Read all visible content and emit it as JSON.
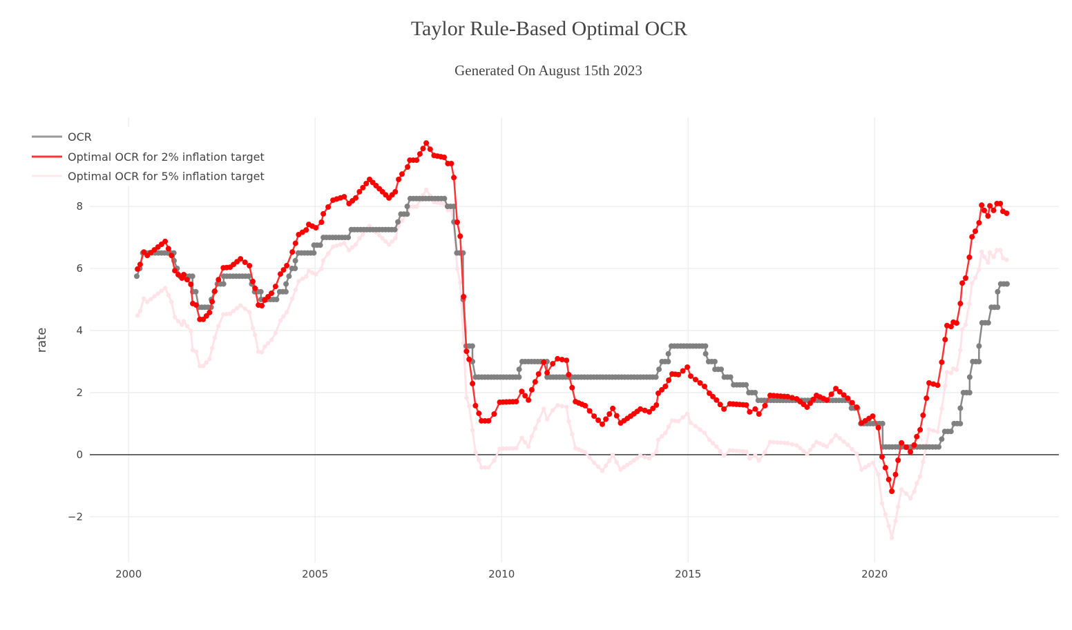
{
  "chart_data": {
    "type": "line",
    "title": "Taylor Rule-Based Optimal OCR",
    "subtitle": "Generated On August 15th 2023",
    "xlabel": "",
    "ylabel": "rate",
    "xlim": [
      1998.96,
      2024.94
    ],
    "ylim": [
      -3.47,
      10.87
    ],
    "x_ticks": [
      2000,
      2005,
      2010,
      2015,
      2020
    ],
    "x_tick_labels": [
      "2000",
      "2005",
      "2010",
      "2015",
      "2020"
    ],
    "y_ticks": [
      -2,
      0,
      2,
      4,
      6,
      8
    ],
    "y_tick_labels": [
      "−2",
      "0",
      "2",
      "4",
      "6",
      "8"
    ],
    "grid": true,
    "legend_position": "top-left",
    "series": [
      {
        "name": "OCR",
        "color": "#808080",
        "mode": "lines+markers",
        "step_changes": [
          [
            2000.22,
            5.75
          ],
          [
            2000.3,
            6.0
          ],
          [
            2000.38,
            6.5
          ],
          [
            2001.22,
            6.25
          ],
          [
            2001.3,
            6.0
          ],
          [
            2001.38,
            5.75
          ],
          [
            2001.72,
            5.25
          ],
          [
            2001.88,
            4.75
          ],
          [
            2002.22,
            5.0
          ],
          [
            2002.3,
            5.25
          ],
          [
            2002.38,
            5.5
          ],
          [
            2002.55,
            5.75
          ],
          [
            2003.3,
            5.5
          ],
          [
            2003.38,
            5.25
          ],
          [
            2003.55,
            5.0
          ],
          [
            2004.05,
            5.25
          ],
          [
            2004.22,
            5.5
          ],
          [
            2004.3,
            5.75
          ],
          [
            2004.38,
            6.0
          ],
          [
            2004.47,
            6.25
          ],
          [
            2004.55,
            6.5
          ],
          [
            2004.97,
            6.75
          ],
          [
            2005.22,
            7.0
          ],
          [
            2005.97,
            7.25
          ],
          [
            2007.22,
            7.5
          ],
          [
            2007.3,
            7.75
          ],
          [
            2007.47,
            8.0
          ],
          [
            2007.55,
            8.25
          ],
          [
            2008.55,
            8.0
          ],
          [
            2008.72,
            7.5
          ],
          [
            2008.8,
            6.5
          ],
          [
            2008.97,
            5.0
          ],
          [
            2009.05,
            3.5
          ],
          [
            2009.22,
            3.0
          ],
          [
            2009.3,
            2.5
          ],
          [
            2010.47,
            2.75
          ],
          [
            2010.55,
            3.0
          ],
          [
            2011.22,
            2.5
          ],
          [
            2014.22,
            2.75
          ],
          [
            2014.3,
            3.0
          ],
          [
            2014.47,
            3.25
          ],
          [
            2014.55,
            3.5
          ],
          [
            2015.47,
            3.25
          ],
          [
            2015.55,
            3.0
          ],
          [
            2015.72,
            2.75
          ],
          [
            2015.97,
            2.5
          ],
          [
            2016.22,
            2.25
          ],
          [
            2016.63,
            2.0
          ],
          [
            2016.88,
            1.75
          ],
          [
            2019.38,
            1.5
          ],
          [
            2019.63,
            1.0
          ],
          [
            2020.22,
            0.25
          ],
          [
            2021.8,
            0.5
          ],
          [
            2021.88,
            0.75
          ],
          [
            2022.13,
            1.0
          ],
          [
            2022.3,
            1.5
          ],
          [
            2022.38,
            2.0
          ],
          [
            2022.55,
            2.5
          ],
          [
            2022.63,
            3.0
          ],
          [
            2022.8,
            3.5
          ],
          [
            2022.88,
            4.25
          ],
          [
            2023.13,
            4.75
          ],
          [
            2023.3,
            5.25
          ],
          [
            2023.38,
            5.5
          ]
        ],
        "end_x": 2023.55
      },
      {
        "name": "Optimal OCR for 2% inflation target",
        "color": "#ff0000",
        "line_color": "#ff3333",
        "mode": "lines+markers",
        "x": [
          2000.24,
          2000.31,
          2000.41,
          2000.5,
          2000.98,
          2001.07,
          2001.15,
          2001.24,
          2001.33,
          2001.43,
          2001.48,
          2001.57,
          2001.67,
          2001.72,
          2001.81,
          2001.91,
          2002.0,
          2002.17,
          2002.24,
          2002.31,
          2002.41,
          2002.54,
          2002.72,
          2003.0,
          2003.24,
          2003.33,
          2003.39,
          2003.48,
          2003.57,
          2003.65,
          2003.83,
          2003.94,
          2004.07,
          2004.24,
          2004.39,
          2004.56,
          2004.76,
          2004.83,
          2005.02,
          2005.17,
          2005.22,
          2005.35,
          2005.48,
          2005.78,
          2005.91,
          2006.09,
          2006.19,
          2006.46,
          2006.98,
          2007.15,
          2007.24,
          2007.33,
          2007.48,
          2007.54,
          2007.72,
          2007.81,
          2007.98,
          2008.19,
          2008.46,
          2008.56,
          2008.65,
          2008.72,
          2008.81,
          2008.89,
          2008.98,
          2009.06,
          2009.13,
          2009.22,
          2009.3,
          2009.39,
          2009.46,
          2009.65,
          2009.8,
          2009.95,
          2010.39,
          2010.54,
          2010.72,
          2010.81,
          2010.99,
          2011.13,
          2011.22,
          2011.37,
          2011.5,
          2011.74,
          2011.8,
          2011.89,
          2011.98,
          2012.24,
          2012.48,
          2012.7,
          2012.89,
          2012.98,
          2013.19,
          2013.46,
          2013.72,
          2013.96,
          2014.15,
          2014.2,
          2014.39,
          2014.57,
          2014.74,
          2014.98,
          2015.07,
          2015.2,
          2015.44,
          2015.57,
          2015.76,
          2015.96,
          2016.12,
          2016.56,
          2016.65,
          2016.8,
          2016.9,
          2017.06,
          2017.2,
          2017.67,
          2017.91,
          2018.19,
          2018.44,
          2018.72,
          2018.96,
          2019.28,
          2019.52,
          2019.65,
          2019.95,
          2020.1,
          2020.2,
          2020.29,
          2020.38,
          2020.46,
          2020.56,
          2020.63,
          2020.72,
          2020.85,
          2020.96,
          2021.06,
          2021.13,
          2021.22,
          2021.3,
          2021.39,
          2021.46,
          2021.69,
          2021.8,
          2021.89,
          2021.94,
          2022.05,
          2022.11,
          2022.2,
          2022.3,
          2022.35,
          2022.44,
          2022.54,
          2022.61,
          2022.7,
          2022.8,
          2022.87,
          2022.94,
          2023.04,
          2023.09,
          2023.19,
          2023.28,
          2023.37,
          2023.44,
          2023.54
        ],
        "values": [
          5.98,
          6.13,
          6.53,
          6.42,
          6.87,
          6.64,
          6.42,
          5.93,
          5.8,
          5.69,
          5.8,
          5.64,
          5.49,
          4.87,
          4.82,
          4.36,
          4.36,
          4.58,
          4.93,
          5.27,
          5.64,
          6.02,
          6.04,
          6.31,
          6.09,
          5.58,
          5.36,
          4.82,
          4.8,
          4.98,
          5.2,
          5.42,
          5.82,
          6.09,
          6.53,
          7.09,
          7.24,
          7.42,
          7.31,
          7.49,
          7.76,
          7.98,
          8.2,
          8.31,
          8.09,
          8.27,
          8.47,
          8.87,
          8.27,
          8.47,
          8.87,
          9.04,
          9.27,
          9.49,
          9.49,
          9.69,
          10.04,
          9.64,
          9.58,
          9.38,
          9.38,
          8.93,
          7.49,
          7.04,
          5.09,
          3.33,
          3.07,
          2.29,
          1.58,
          1.33,
          1.09,
          1.09,
          1.31,
          1.69,
          1.71,
          2.04,
          1.76,
          2.09,
          2.6,
          2.98,
          2.64,
          2.93,
          3.09,
          3.04,
          2.58,
          2.16,
          1.71,
          1.58,
          1.24,
          0.98,
          1.31,
          1.49,
          1.02,
          1.24,
          1.47,
          1.38,
          1.6,
          1.98,
          2.2,
          2.6,
          2.58,
          2.82,
          2.53,
          2.42,
          2.2,
          1.98,
          1.76,
          1.47,
          1.64,
          1.6,
          1.38,
          1.47,
          1.31,
          1.58,
          1.91,
          1.87,
          1.8,
          1.53,
          1.91,
          1.76,
          2.13,
          1.82,
          1.53,
          1.02,
          1.24,
          0.87,
          -0.07,
          -0.42,
          -0.8,
          -1.18,
          -0.64,
          -0.18,
          0.38,
          0.24,
          0.09,
          0.31,
          0.58,
          0.8,
          1.27,
          1.82,
          2.31,
          2.24,
          2.98,
          3.71,
          4.16,
          4.13,
          4.27,
          4.24,
          4.87,
          5.53,
          5.69,
          6.36,
          7.02,
          7.2,
          7.47,
          8.04,
          7.87,
          7.69,
          8.02,
          7.87,
          8.09,
          8.09,
          7.84,
          7.78
        ]
      },
      {
        "name": "Optimal OCR for 5% inflation target",
        "color": "#ffe5ea",
        "mode": "lines+markers",
        "x_same_as": "Optimal OCR for 2% inflation target",
        "values": [
          4.48,
          4.63,
          5.03,
          4.92,
          5.37,
          5.14,
          4.92,
          4.43,
          4.3,
          4.19,
          4.3,
          4.14,
          3.99,
          3.37,
          3.32,
          2.86,
          2.86,
          3.08,
          3.43,
          3.77,
          4.14,
          4.52,
          4.54,
          4.81,
          4.59,
          4.08,
          3.86,
          3.32,
          3.3,
          3.48,
          3.7,
          3.92,
          4.32,
          4.59,
          5.03,
          5.59,
          5.74,
          5.92,
          5.81,
          5.99,
          6.26,
          6.48,
          6.7,
          6.81,
          6.59,
          6.77,
          6.97,
          7.37,
          6.77,
          6.97,
          7.37,
          7.54,
          7.77,
          7.99,
          7.99,
          8.19,
          8.54,
          8.14,
          8.08,
          7.88,
          7.88,
          7.43,
          5.99,
          5.54,
          3.59,
          1.83,
          1.57,
          0.79,
          0.08,
          -0.17,
          -0.41,
          -0.41,
          -0.19,
          0.19,
          0.21,
          0.54,
          0.26,
          0.59,
          1.1,
          1.48,
          1.14,
          1.43,
          1.59,
          1.54,
          1.08,
          0.66,
          0.21,
          0.08,
          -0.26,
          -0.52,
          -0.19,
          -0.01,
          -0.48,
          -0.26,
          -0.03,
          -0.12,
          0.1,
          0.48,
          0.7,
          1.1,
          1.08,
          1.32,
          1.03,
          0.92,
          0.7,
          0.48,
          0.26,
          -0.03,
          0.14,
          0.1,
          -0.12,
          -0.03,
          -0.19,
          0.08,
          0.41,
          0.37,
          0.3,
          0.03,
          0.41,
          0.26,
          0.63,
          0.32,
          0.03,
          -0.48,
          -0.26,
          -0.63,
          -1.57,
          -1.92,
          -2.3,
          -2.68,
          -2.14,
          -1.68,
          -1.12,
          -1.26,
          -1.41,
          -1.19,
          -0.92,
          -0.7,
          -0.23,
          0.32,
          0.81,
          0.74,
          1.48,
          2.21,
          2.66,
          2.63,
          2.77,
          2.74,
          3.37,
          4.03,
          4.19,
          4.86,
          5.52,
          5.7,
          5.97,
          6.54,
          6.37,
          6.19,
          6.52,
          6.37,
          6.59,
          6.59,
          6.34,
          6.28
        ]
      }
    ]
  }
}
